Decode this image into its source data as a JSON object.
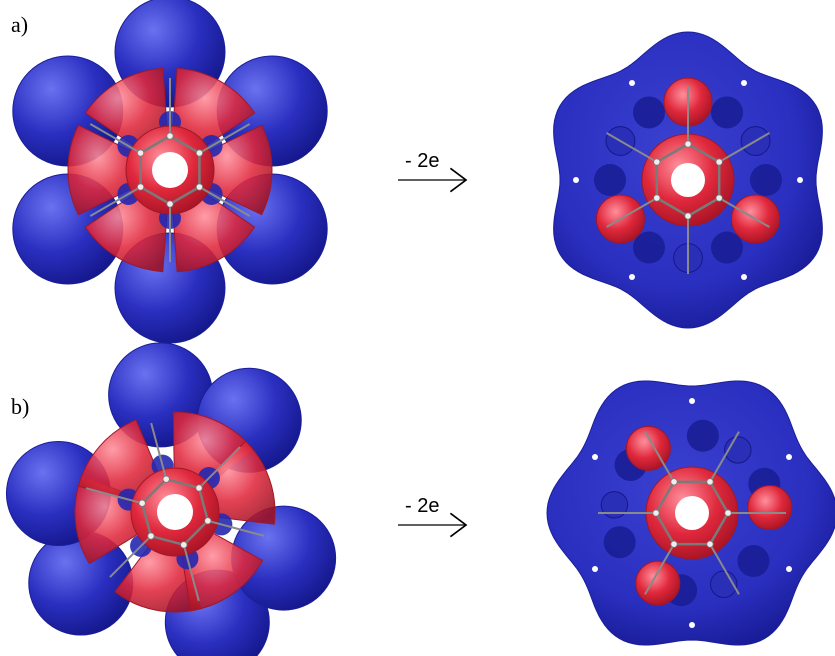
{
  "panels": [
    {
      "label": "a)",
      "arrow_label": "- 2e"
    },
    {
      "label": "b)",
      "arrow_label": "- 2e"
    }
  ],
  "colors": {
    "negative_lobe": "#2a2fc0",
    "positive_lobe": "#e0283c",
    "bond": "#8a8a8a",
    "atom": "#e8e8e8"
  }
}
